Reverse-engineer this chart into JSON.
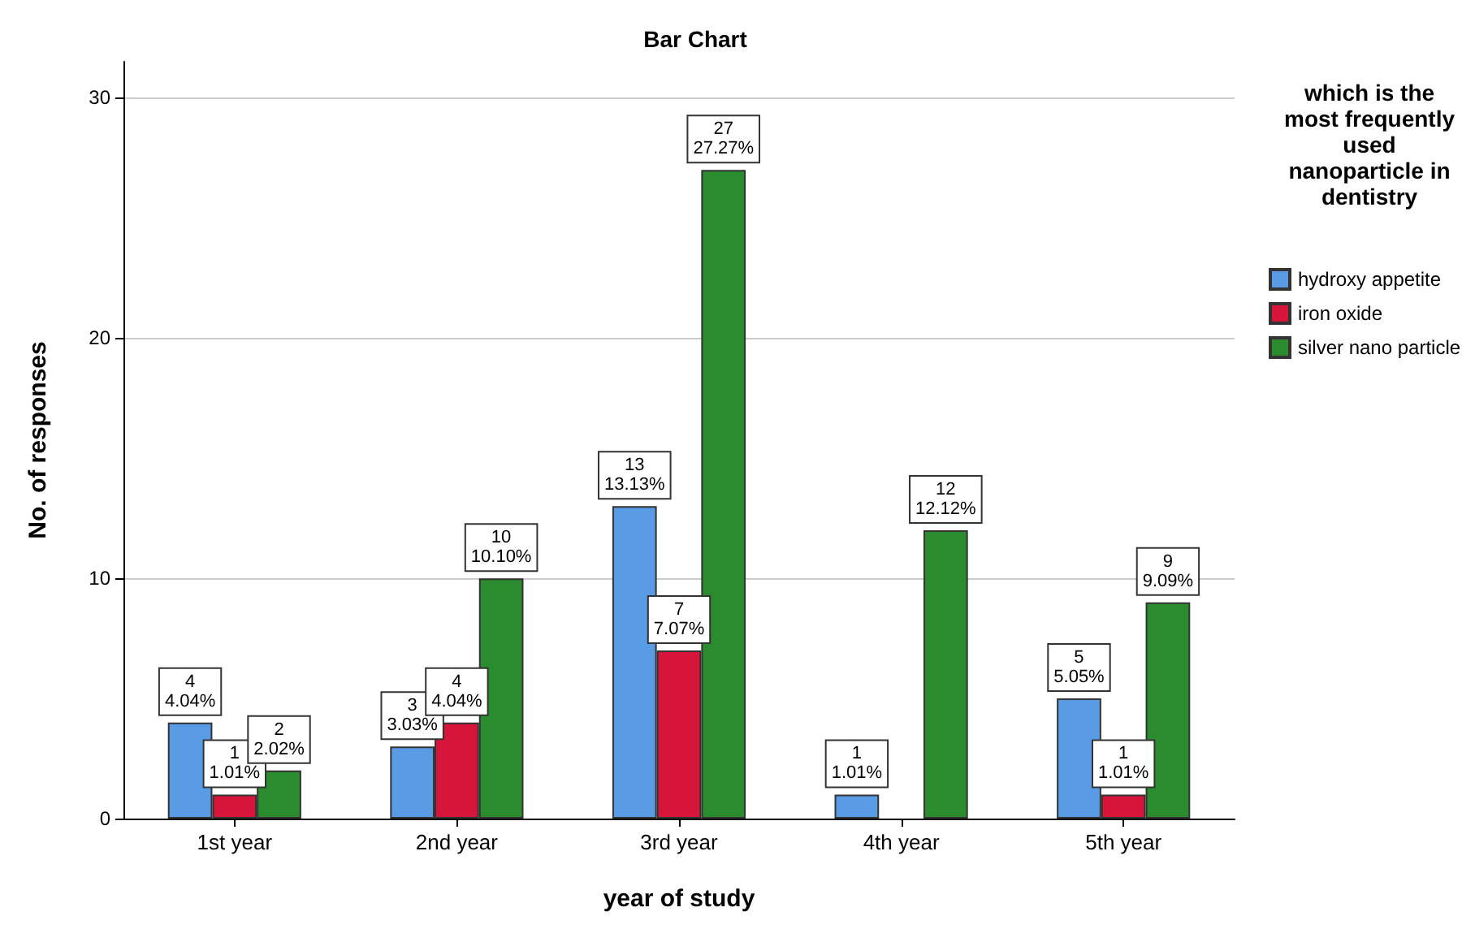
{
  "chart_data": {
    "type": "bar",
    "title": "Bar Chart",
    "xlabel": "year of study",
    "ylabel": "No. of responses",
    "legend_title": "which is the most frequently used nanoparticle in dentistry",
    "categories": [
      "1st year",
      "2nd year",
      "3rd year",
      "4th year",
      "5th year"
    ],
    "series": [
      {
        "name": "hydroxy appetite",
        "color": "#5a9be6",
        "values": [
          4,
          3,
          13,
          1,
          5
        ],
        "value_labels": [
          "4\n4.04%",
          "3\n3.03%",
          "13\n13.13%",
          "1\n1.01%",
          "5\n5.05%"
        ]
      },
      {
        "name": "iron oxide",
        "color": "#d7153a",
        "values": [
          1,
          4,
          7,
          null,
          1
        ],
        "value_labels": [
          "1\n1.01%",
          "4\n4.04%",
          "7\n7.07%",
          null,
          "1\n1.01%"
        ]
      },
      {
        "name": "silver nano particle",
        "color": "#2a8c2e",
        "values": [
          2,
          10,
          27,
          12,
          9
        ],
        "value_labels": [
          "2\n2.02%",
          "10\n10.10%",
          "27\n27.27%",
          "12\n12.12%",
          "9\n9.09%"
        ]
      }
    ],
    "ylim": [
      0,
      31.5
    ],
    "yticks": [
      0,
      10,
      20,
      30
    ],
    "grid": "y",
    "legend": "right"
  }
}
